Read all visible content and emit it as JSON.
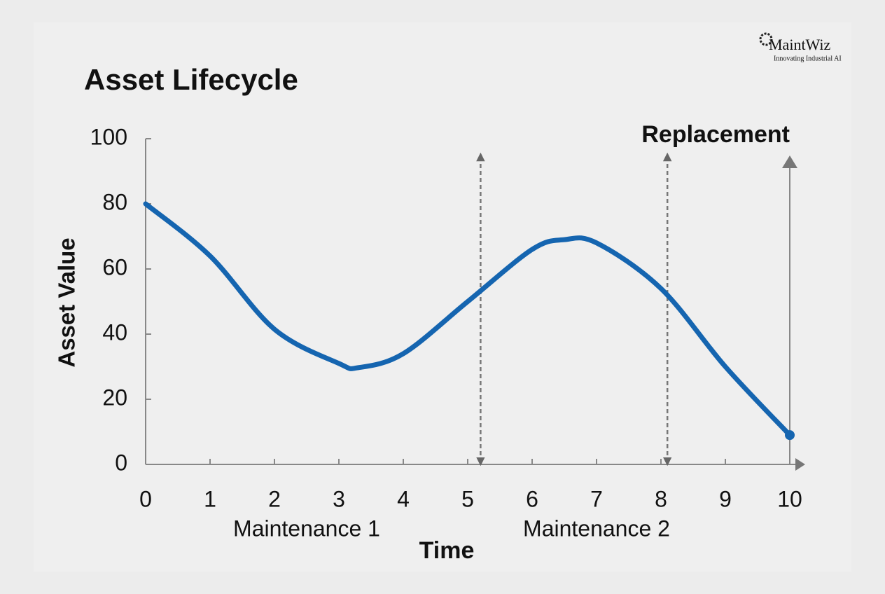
{
  "chart_data": {
    "type": "line",
    "title": "Asset Lifecycle",
    "x_label": "Time",
    "y_label": "Asset Value",
    "x": [
      0,
      1,
      2,
      3,
      3.3,
      4,
      5,
      6,
      6.5,
      7,
      8,
      9,
      10
    ],
    "series": [
      {
        "color": "#1565b0",
        "values": [
          80,
          64,
          41.5,
          31,
          29.7,
          34,
          50,
          66,
          69,
          68,
          54,
          30,
          9
        ]
      }
    ],
    "xlim": [
      0,
      10
    ],
    "ylim": [
      0,
      100
    ],
    "xticks": [
      0,
      1,
      2,
      3,
      4,
      5,
      6,
      7,
      8,
      9,
      10
    ],
    "yticks": [
      0,
      20,
      40,
      60,
      80,
      100
    ],
    "grid": false,
    "markers": [
      {
        "x": 5.2,
        "style": "dashed"
      },
      {
        "x": 8.1,
        "style": "dashed"
      },
      {
        "x": 10,
        "style": "solid",
        "label": "Replacement"
      }
    ],
    "annotations": [
      {
        "text": "Maintenance 1",
        "x": 2.5
      },
      {
        "text": "Maintenance 2",
        "x": 7
      }
    ]
  },
  "branding": {
    "name": "MaintWiz",
    "tagline": "Innovating Industrial AI"
  }
}
